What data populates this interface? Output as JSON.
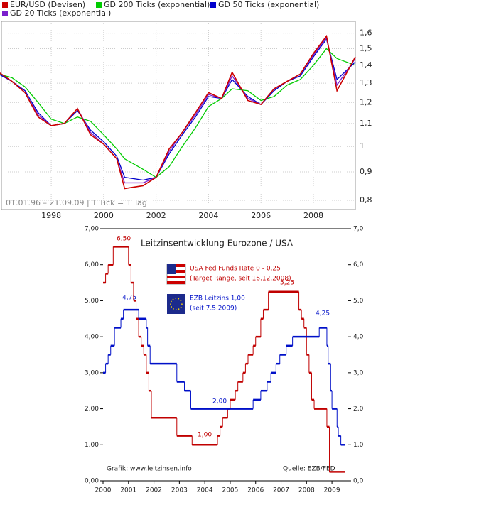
{
  "chart_data": [
    {
      "type": "line",
      "log_scale": true,
      "grid": true,
      "annotation": "01.01.96 – 21.09.09 | 1 Tick = 1 Tag",
      "x": [
        1996.0,
        1996.5,
        1997.0,
        1997.5,
        1998.0,
        1998.5,
        1999.0,
        1999.5,
        2000.0,
        2000.5,
        2000.8,
        2001.5,
        2002.0,
        2002.5,
        2003.0,
        2003.5,
        2004.0,
        2004.5,
        2004.9,
        2005.5,
        2006.0,
        2006.5,
        2007.0,
        2007.5,
        2008.0,
        2008.5,
        2008.9,
        2009.6
      ],
      "xlim": [
        1996.1,
        2009.6
      ],
      "xticks": [
        1998,
        2000,
        2002,
        2004,
        2006,
        2008
      ],
      "ylim": [
        0.77,
        1.68
      ],
      "yticks": [
        {
          "value": 0.8,
          "label": "0,8"
        },
        {
          "value": 0.9,
          "label": "0,9"
        },
        1,
        {
          "value": 1.1,
          "label": "1,1"
        },
        {
          "value": 1.2,
          "label": "1,2"
        },
        {
          "value": 1.3,
          "label": "1,3"
        },
        {
          "value": 1.4,
          "label": "1,4"
        },
        {
          "value": 1.5,
          "label": "1,5"
        },
        {
          "value": 1.6,
          "label": "1,6"
        }
      ],
      "series": [
        {
          "name": "EUR/USD (Devisen)",
          "color": "#cc0000",
          "values": [
            1.36,
            1.31,
            1.25,
            1.13,
            1.09,
            1.1,
            1.17,
            1.05,
            1.01,
            0.95,
            0.84,
            0.85,
            0.88,
            0.99,
            1.06,
            1.15,
            1.25,
            1.22,
            1.36,
            1.21,
            1.19,
            1.27,
            1.31,
            1.35,
            1.47,
            1.58,
            1.26,
            1.45
          ]
        },
        {
          "name": "GD 200 Ticks (exponential)",
          "color": "#00cc00",
          "values": [
            1.35,
            1.33,
            1.28,
            1.2,
            1.12,
            1.1,
            1.13,
            1.11,
            1.05,
            0.99,
            0.95,
            0.91,
            0.88,
            0.92,
            1.0,
            1.08,
            1.18,
            1.22,
            1.27,
            1.26,
            1.21,
            1.23,
            1.29,
            1.32,
            1.4,
            1.5,
            1.44,
            1.4
          ]
        },
        {
          "name": "GD 50 Ticks (exponential)",
          "color": "#0000cc",
          "values": [
            1.35,
            1.31,
            1.26,
            1.15,
            1.09,
            1.1,
            1.16,
            1.07,
            1.02,
            0.96,
            0.88,
            0.87,
            0.88,
            0.97,
            1.05,
            1.13,
            1.23,
            1.22,
            1.32,
            1.23,
            1.19,
            1.26,
            1.31,
            1.34,
            1.45,
            1.56,
            1.32,
            1.42
          ]
        },
        {
          "name": "GD 20 Ticks (exponential)",
          "color": "#7a1fcc",
          "values": [
            1.36,
            1.31,
            1.25,
            1.14,
            1.09,
            1.1,
            1.17,
            1.06,
            1.01,
            0.95,
            0.86,
            0.86,
            0.88,
            0.98,
            1.06,
            1.14,
            1.24,
            1.22,
            1.34,
            1.22,
            1.19,
            1.27,
            1.31,
            1.35,
            1.46,
            1.57,
            1.29,
            1.44
          ]
        }
      ]
    },
    {
      "type": "step",
      "title": "Leitzinsentwicklung Eurozone / USA",
      "xlim": [
        2000,
        2009.64
      ],
      "xticks": [
        2000,
        2001,
        2002,
        2003,
        2004,
        2005,
        2006,
        2007,
        2008,
        2009
      ],
      "ylim": [
        0,
        7
      ],
      "yticks": [
        {
          "value": 0,
          "label": "0,00"
        },
        {
          "value": 1,
          "label": "1,00"
        },
        {
          "value": 2,
          "label": "2,00"
        },
        {
          "value": 3,
          "label": "3,00"
        },
        {
          "value": 4,
          "label": "4,00"
        },
        {
          "value": 5,
          "label": "5,00"
        },
        {
          "value": 6,
          "label": "6,00"
        },
        {
          "value": 7,
          "label": "7,00"
        }
      ],
      "y2lim": [
        0,
        7
      ],
      "y2ticks": [
        {
          "value": 0,
          "label": "0,0"
        },
        {
          "value": 1,
          "label": "1,0"
        },
        {
          "value": 2,
          "label": "2,0"
        },
        {
          "value": 3,
          "label": "3,0"
        },
        {
          "value": 4,
          "label": "4,0"
        },
        {
          "value": 5,
          "label": "5,0"
        },
        {
          "value": 6,
          "label": "6,0"
        },
        {
          "value": 7,
          "label": "7,0"
        }
      ],
      "legend": [
        "USA Fed Funds Rate 0 - 0,25",
        "(Target Range, seit 16.12.2008)",
        "EZB Leitzins 1,00",
        "(seit 7.5.2009)"
      ],
      "annotations": [
        "6,50",
        "4,75",
        "2,00",
        "1,00",
        "5,25",
        "4,25"
      ],
      "footer_left": "Grafik: www.leitzinsen.info",
      "footer_right": "Quelle: EZB/FED",
      "series": [
        {
          "name": "Fed",
          "color": "#c00000",
          "x": [
            2000.0,
            2000.1,
            2000.2,
            2000.4,
            2001.0,
            2001.1,
            2001.2,
            2001.3,
            2001.4,
            2001.5,
            2001.6,
            2001.7,
            2001.8,
            2001.9,
            2002.9,
            2003.5,
            2004.5,
            2004.6,
            2004.7,
            2004.9,
            2005.0,
            2005.2,
            2005.3,
            2005.5,
            2005.6,
            2005.7,
            2005.9,
            2006.0,
            2006.2,
            2006.3,
            2006.5,
            2007.7,
            2007.8,
            2007.9,
            2008.0,
            2008.1,
            2008.2,
            2008.3,
            2008.8,
            2008.9
          ],
          "values": [
            5.5,
            5.75,
            6.0,
            6.5,
            6.0,
            5.5,
            5.0,
            4.5,
            4.0,
            3.75,
            3.5,
            3.0,
            2.5,
            1.75,
            1.25,
            1.0,
            1.25,
            1.5,
            1.75,
            2.0,
            2.25,
            2.5,
            2.75,
            3.0,
            3.25,
            3.5,
            3.75,
            4.0,
            4.5,
            4.75,
            5.25,
            4.75,
            4.5,
            4.25,
            3.5,
            3.0,
            2.25,
            2.0,
            1.5,
            0.25
          ]
        },
        {
          "name": "EZB",
          "color": "#0010c8",
          "x": [
            2000.0,
            2000.1,
            2000.2,
            2000.3,
            2000.45,
            2000.7,
            2000.8,
            2001.4,
            2001.7,
            2001.75,
            2001.85,
            2002.9,
            2003.2,
            2003.45,
            2005.9,
            2006.2,
            2006.45,
            2006.6,
            2006.8,
            2006.95,
            2007.2,
            2007.45,
            2008.5,
            2008.8,
            2008.85,
            2008.95,
            2009.0,
            2009.2,
            2009.25,
            2009.35
          ],
          "values": [
            3.0,
            3.25,
            3.5,
            3.75,
            4.25,
            4.5,
            4.75,
            4.5,
            4.25,
            3.75,
            3.25,
            2.75,
            2.5,
            2.0,
            2.25,
            2.5,
            2.75,
            3.0,
            3.25,
            3.5,
            3.75,
            4.0,
            4.25,
            3.75,
            3.25,
            2.5,
            2.0,
            1.5,
            1.25,
            1.0
          ]
        }
      ]
    }
  ]
}
